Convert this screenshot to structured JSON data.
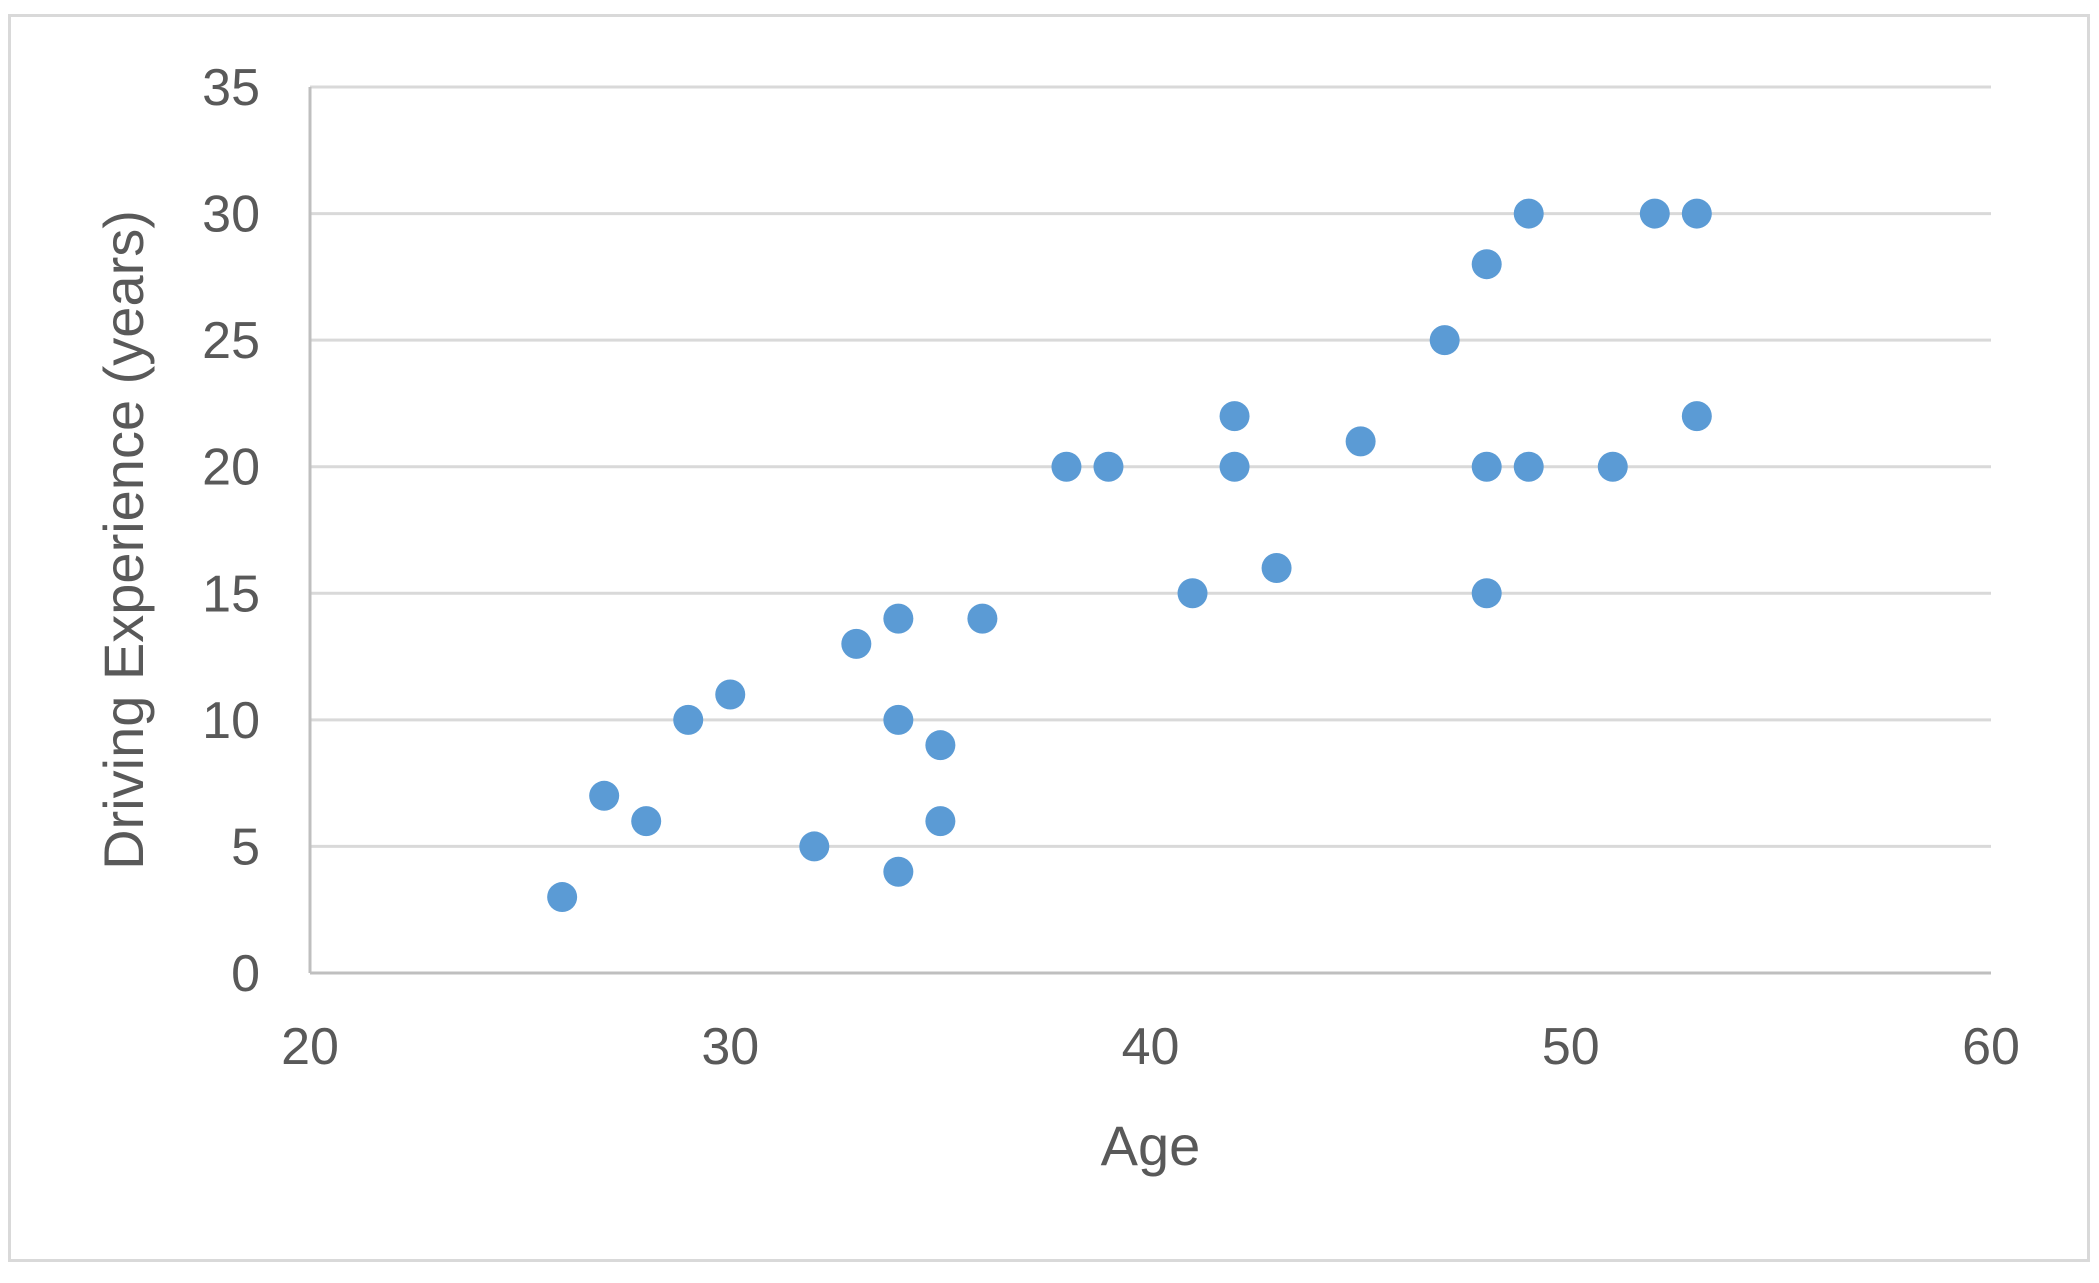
{
  "chart_data": {
    "type": "scatter",
    "title": "",
    "xlabel": "Age",
    "ylabel": "Driving Experience (years)",
    "xlim": [
      20,
      60
    ],
    "ylim": [
      0,
      35
    ],
    "x_ticks": [
      20,
      30,
      40,
      50,
      60
    ],
    "y_ticks": [
      0,
      5,
      10,
      15,
      20,
      25,
      30,
      35
    ],
    "grid": "horizontal",
    "legend": "none",
    "marker_color": "#5b9bd5",
    "series": [
      {
        "points": [
          {
            "x": 26,
            "y": 3
          },
          {
            "x": 27,
            "y": 7
          },
          {
            "x": 28,
            "y": 6
          },
          {
            "x": 29,
            "y": 10
          },
          {
            "x": 30,
            "y": 11
          },
          {
            "x": 32,
            "y": 5
          },
          {
            "x": 33,
            "y": 13
          },
          {
            "x": 34,
            "y": 14
          },
          {
            "x": 34,
            "y": 10
          },
          {
            "x": 34,
            "y": 4
          },
          {
            "x": 35,
            "y": 9
          },
          {
            "x": 35,
            "y": 6
          },
          {
            "x": 36,
            "y": 14
          },
          {
            "x": 38,
            "y": 20
          },
          {
            "x": 39,
            "y": 20
          },
          {
            "x": 41,
            "y": 15
          },
          {
            "x": 42,
            "y": 22
          },
          {
            "x": 42,
            "y": 20
          },
          {
            "x": 43,
            "y": 16
          },
          {
            "x": 45,
            "y": 21
          },
          {
            "x": 47,
            "y": 25
          },
          {
            "x": 48,
            "y": 28
          },
          {
            "x": 48,
            "y": 20
          },
          {
            "x": 48,
            "y": 15
          },
          {
            "x": 49,
            "y": 30
          },
          {
            "x": 49,
            "y": 20
          },
          {
            "x": 51,
            "y": 20
          },
          {
            "x": 52,
            "y": 30
          },
          {
            "x": 53,
            "y": 30
          },
          {
            "x": 53,
            "y": 22
          }
        ]
      }
    ]
  }
}
